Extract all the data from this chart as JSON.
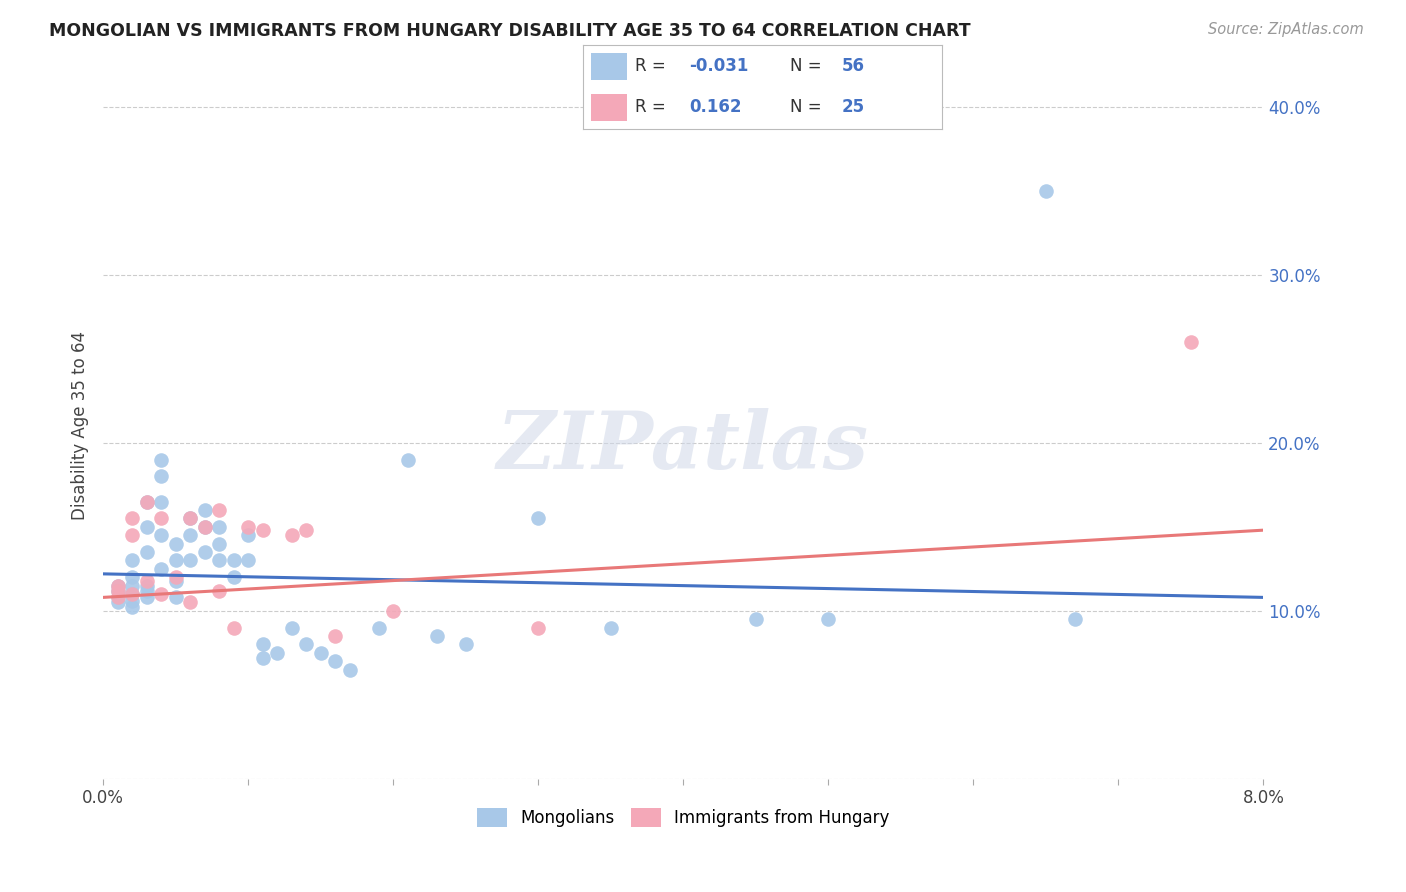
{
  "title": "MONGOLIAN VS IMMIGRANTS FROM HUNGARY DISABILITY AGE 35 TO 64 CORRELATION CHART",
  "source": "Source: ZipAtlas.com",
  "ylabel": "Disability Age 35 to 64",
  "xlim": [
    0.0,
    0.08
  ],
  "ylim": [
    0.0,
    0.42
  ],
  "xticks": [
    0.0,
    0.01,
    0.02,
    0.03,
    0.04,
    0.05,
    0.06,
    0.07,
    0.08
  ],
  "yticks": [
    0.0,
    0.1,
    0.2,
    0.3,
    0.4
  ],
  "ytick_right_labels": [
    "",
    "10.0%",
    "20.0%",
    "30.0%",
    "40.0%"
  ],
  "xtick_labels": [
    "0.0%",
    "",
    "",
    "",
    "",
    "",
    "",
    "",
    "8.0%"
  ],
  "blue_color": "#a8c8e8",
  "pink_color": "#f4a8b8",
  "blue_line_color": "#4472c4",
  "pink_line_color": "#e87878",
  "watermark_text": "ZIPatlas",
  "legend_label_blue": "Mongolians",
  "legend_label_pink": "Immigrants from Hungary",
  "blue_R_text": "-0.031",
  "blue_N_text": "56",
  "pink_R_text": "0.162",
  "pink_N_text": "25",
  "mongolian_x": [
    0.001,
    0.001,
    0.001,
    0.001,
    0.002,
    0.002,
    0.002,
    0.002,
    0.002,
    0.002,
    0.003,
    0.003,
    0.003,
    0.003,
    0.003,
    0.003,
    0.004,
    0.004,
    0.004,
    0.004,
    0.004,
    0.005,
    0.005,
    0.005,
    0.005,
    0.006,
    0.006,
    0.006,
    0.007,
    0.007,
    0.007,
    0.008,
    0.008,
    0.008,
    0.009,
    0.009,
    0.01,
    0.01,
    0.011,
    0.011,
    0.012,
    0.013,
    0.014,
    0.015,
    0.016,
    0.017,
    0.019,
    0.021,
    0.023,
    0.025,
    0.03,
    0.035,
    0.045,
    0.05,
    0.065,
    0.067
  ],
  "mongolian_y": [
    0.115,
    0.112,
    0.108,
    0.105,
    0.13,
    0.12,
    0.115,
    0.11,
    0.106,
    0.102,
    0.165,
    0.15,
    0.135,
    0.115,
    0.112,
    0.108,
    0.19,
    0.18,
    0.165,
    0.145,
    0.125,
    0.14,
    0.13,
    0.118,
    0.108,
    0.155,
    0.145,
    0.13,
    0.16,
    0.15,
    0.135,
    0.15,
    0.14,
    0.13,
    0.13,
    0.12,
    0.145,
    0.13,
    0.08,
    0.072,
    0.075,
    0.09,
    0.08,
    0.075,
    0.07,
    0.065,
    0.09,
    0.19,
    0.085,
    0.08,
    0.155,
    0.09,
    0.095,
    0.095,
    0.35,
    0.095
  ],
  "hungary_x": [
    0.001,
    0.001,
    0.001,
    0.002,
    0.002,
    0.002,
    0.003,
    0.003,
    0.004,
    0.004,
    0.005,
    0.006,
    0.006,
    0.007,
    0.008,
    0.008,
    0.009,
    0.01,
    0.011,
    0.013,
    0.014,
    0.016,
    0.02,
    0.03,
    0.075
  ],
  "hungary_y": [
    0.115,
    0.112,
    0.108,
    0.155,
    0.145,
    0.11,
    0.165,
    0.118,
    0.155,
    0.11,
    0.12,
    0.155,
    0.105,
    0.15,
    0.16,
    0.112,
    0.09,
    0.15,
    0.148,
    0.145,
    0.148,
    0.085,
    0.1,
    0.09,
    0.26
  ],
  "blue_line_x0": 0.0,
  "blue_line_y0": 0.122,
  "blue_line_x1": 0.08,
  "blue_line_y1": 0.108,
  "pink_line_x0": 0.0,
  "pink_line_y0": 0.108,
  "pink_line_x1": 0.08,
  "pink_line_y1": 0.148
}
